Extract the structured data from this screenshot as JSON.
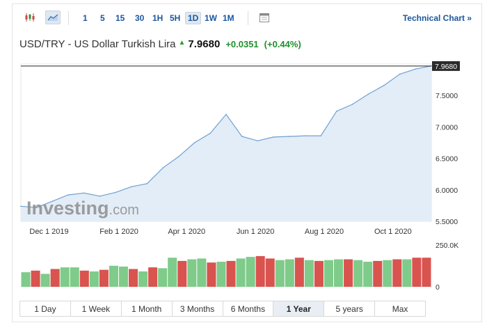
{
  "toolbar": {
    "candle_icon": "candlestick-icon",
    "area_icon": "area-chart-icon",
    "calendar_icon": "calendar-icon",
    "intervals": [
      "1",
      "5",
      "15",
      "30",
      "1H",
      "5H",
      "1D",
      "1W",
      "1M"
    ],
    "selected_interval": "1D",
    "technical_link": "Technical Chart »"
  },
  "quote": {
    "name": "USD/TRY - US Dollar Turkish Lira",
    "price": "7.9680",
    "change": "+0.0351",
    "change_pct": "(+0.44%)"
  },
  "watermark": {
    "brand": "Investing",
    "suffix": ".com"
  },
  "colors": {
    "line": "#6f9fd1",
    "area": "#e3edf7",
    "up": "#7fcb8a",
    "down": "#d9534f",
    "accent": "#1a56a0"
  },
  "ranges": [
    "1 Day",
    "1 Week",
    "1 Month",
    "3 Months",
    "6 Months",
    "1 Year",
    "5 years",
    "Max"
  ],
  "selected_range": "1 Year",
  "chart_data": [
    {
      "type": "area",
      "x_tick_labels": [
        "Dec 1 2019",
        "Feb 1 2020",
        "Apr 1 2020",
        "Jun 1 2020",
        "Aug 1 2020",
        "Oct 1 2020"
      ],
      "y_tick_labels": [
        "7.5000",
        "7.0000",
        "6.5000",
        "6.0000",
        "5.5000"
      ],
      "ylim": [
        5.5,
        8.0
      ],
      "last_price_label": "7.9680",
      "x": [
        "2019-11-06",
        "2019-11-20",
        "2019-12-04",
        "2019-12-18",
        "2020-01-01",
        "2020-01-15",
        "2020-01-29",
        "2020-02-12",
        "2020-02-26",
        "2020-03-11",
        "2020-03-25",
        "2020-04-08",
        "2020-04-22",
        "2020-05-06",
        "2020-05-20",
        "2020-06-03",
        "2020-06-17",
        "2020-07-01",
        "2020-07-15",
        "2020-07-29",
        "2020-08-12",
        "2020-08-26",
        "2020-09-09",
        "2020-09-23",
        "2020-10-07",
        "2020-10-21",
        "2020-11-04"
      ],
      "values": [
        5.74,
        5.72,
        5.82,
        5.92,
        5.95,
        5.9,
        5.96,
        6.05,
        6.1,
        6.35,
        6.53,
        6.75,
        6.9,
        7.2,
        6.85,
        6.78,
        6.84,
        6.85,
        6.86,
        6.86,
        7.25,
        7.36,
        7.52,
        7.66,
        7.84,
        7.92,
        7.97
      ],
      "grid": false
    },
    {
      "type": "bar",
      "y_tick_labels": [
        "250.0K",
        "0"
      ],
      "ylim": [
        0,
        250000
      ],
      "values": [
        90000,
        100000,
        80000,
        110000,
        120000,
        120000,
        100000,
        95000,
        105000,
        130000,
        125000,
        110000,
        95000,
        120000,
        115000,
        180000,
        160000,
        170000,
        175000,
        150000,
        155000,
        160000,
        175000,
        185000,
        190000,
        175000,
        165000,
        170000,
        180000,
        165000,
        160000,
        165000,
        170000,
        170000,
        165000,
        155000,
        160000,
        165000,
        170000,
        170000,
        180000,
        180000
      ],
      "directions": [
        "up",
        "down",
        "up",
        "down",
        "up",
        "up",
        "down",
        "up",
        "down",
        "up",
        "up",
        "down",
        "up",
        "down",
        "up",
        "up",
        "down",
        "up",
        "up",
        "down",
        "up",
        "down",
        "up",
        "up",
        "down",
        "down",
        "up",
        "up",
        "down",
        "up",
        "down",
        "up",
        "up",
        "down",
        "up",
        "up",
        "down",
        "up",
        "down",
        "up",
        "down",
        "down"
      ]
    }
  ]
}
